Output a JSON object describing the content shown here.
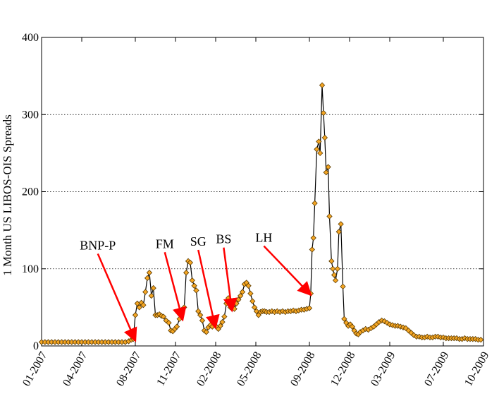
{
  "chart_data": {
    "type": "line",
    "title": "",
    "xlabel": "",
    "ylabel": "1 Month US LIBOS-OIS Spreads",
    "ylim": [
      0,
      400
    ],
    "yticks": [
      0,
      100,
      200,
      300,
      400
    ],
    "xticks": [
      {
        "label": "01-2007",
        "x": 0
      },
      {
        "label": "04-2007",
        "x": 3
      },
      {
        "label": "08-2007",
        "x": 7
      },
      {
        "label": "11-2007",
        "x": 10
      },
      {
        "label": "02-2008",
        "x": 13
      },
      {
        "label": "05-2008",
        "x": 16
      },
      {
        "label": "09-2008",
        "x": 20
      },
      {
        "label": "12-2008",
        "x": 23
      },
      {
        "label": "03-2009",
        "x": 26
      },
      {
        "label": "07-2009",
        "x": 30
      },
      {
        "label": "10-2009",
        "x": 33
      }
    ],
    "xlim": [
      0,
      33
    ],
    "grid": "horizontal-dotted",
    "colors": {
      "line": "#000000",
      "marker_fill": "#f5a623",
      "marker_stroke": "#5a3a00",
      "arrow": "#ff0000"
    },
    "series": [
      {
        "points": [
          [
            0.0,
            5
          ],
          [
            0.25,
            5
          ],
          [
            0.5,
            5
          ],
          [
            0.75,
            5
          ],
          [
            1.0,
            5
          ],
          [
            1.25,
            5
          ],
          [
            1.5,
            5
          ],
          [
            1.75,
            5
          ],
          [
            2.0,
            5
          ],
          [
            2.25,
            5
          ],
          [
            2.5,
            5
          ],
          [
            2.75,
            5
          ],
          [
            3.0,
            5
          ],
          [
            3.25,
            5
          ],
          [
            3.5,
            5
          ],
          [
            3.75,
            5
          ],
          [
            4.0,
            5
          ],
          [
            4.25,
            5
          ],
          [
            4.5,
            5
          ],
          [
            4.75,
            5
          ],
          [
            5.0,
            5
          ],
          [
            5.25,
            5
          ],
          [
            5.5,
            5
          ],
          [
            5.75,
            5
          ],
          [
            6.0,
            5
          ],
          [
            6.25,
            5
          ],
          [
            6.5,
            6
          ],
          [
            6.7,
            8
          ],
          [
            6.85,
            9
          ],
          [
            7.0,
            40
          ],
          [
            7.15,
            55
          ],
          [
            7.3,
            50
          ],
          [
            7.45,
            56
          ],
          [
            7.6,
            53
          ],
          [
            7.75,
            70
          ],
          [
            7.9,
            88
          ],
          [
            8.05,
            95
          ],
          [
            8.2,
            65
          ],
          [
            8.35,
            75
          ],
          [
            8.5,
            40
          ],
          [
            8.65,
            40
          ],
          [
            8.8,
            41
          ],
          [
            8.95,
            39
          ],
          [
            9.1,
            38
          ],
          [
            9.3,
            33
          ],
          [
            9.5,
            30
          ],
          [
            9.65,
            20
          ],
          [
            9.8,
            19
          ],
          [
            9.95,
            22
          ],
          [
            10.1,
            25
          ],
          [
            10.3,
            35
          ],
          [
            10.5,
            45
          ],
          [
            10.65,
            50
          ],
          [
            10.8,
            95
          ],
          [
            10.95,
            110
          ],
          [
            11.1,
            108
          ],
          [
            11.25,
            85
          ],
          [
            11.4,
            78
          ],
          [
            11.55,
            72
          ],
          [
            11.7,
            45
          ],
          [
            11.85,
            40
          ],
          [
            12.0,
            33
          ],
          [
            12.15,
            20
          ],
          [
            12.3,
            18
          ],
          [
            12.45,
            24
          ],
          [
            12.6,
            27
          ],
          [
            12.75,
            25
          ],
          [
            12.9,
            28
          ],
          [
            13.05,
            25
          ],
          [
            13.2,
            22
          ],
          [
            13.35,
            26
          ],
          [
            13.5,
            31
          ],
          [
            13.65,
            38
          ],
          [
            13.8,
            55
          ],
          [
            13.95,
            62
          ],
          [
            14.1,
            50
          ],
          [
            14.25,
            52
          ],
          [
            14.4,
            48
          ],
          [
            14.55,
            55
          ],
          [
            14.7,
            60
          ],
          [
            14.85,
            65
          ],
          [
            15.0,
            70
          ],
          [
            15.15,
            80
          ],
          [
            15.3,
            82
          ],
          [
            15.45,
            78
          ],
          [
            15.6,
            68
          ],
          [
            15.75,
            58
          ],
          [
            15.9,
            50
          ],
          [
            16.05,
            45
          ],
          [
            16.2,
            40
          ],
          [
            16.35,
            44
          ],
          [
            16.5,
            45
          ],
          [
            16.65,
            45
          ],
          [
            16.8,
            44
          ],
          [
            17.0,
            44
          ],
          [
            17.2,
            45
          ],
          [
            17.4,
            44
          ],
          [
            17.6,
            45
          ],
          [
            17.8,
            44
          ],
          [
            18.0,
            45
          ],
          [
            18.2,
            44
          ],
          [
            18.4,
            45
          ],
          [
            18.6,
            45
          ],
          [
            18.8,
            46
          ],
          [
            19.0,
            45
          ],
          [
            19.2,
            46
          ],
          [
            19.4,
            47
          ],
          [
            19.6,
            47
          ],
          [
            19.8,
            48
          ],
          [
            20.0,
            49
          ],
          [
            20.1,
            68
          ],
          [
            20.2,
            125
          ],
          [
            20.3,
            140
          ],
          [
            20.4,
            185
          ],
          [
            20.55,
            255
          ],
          [
            20.7,
            265
          ],
          [
            20.8,
            250
          ],
          [
            20.95,
            338
          ],
          [
            21.05,
            302
          ],
          [
            21.15,
            270
          ],
          [
            21.25,
            225
          ],
          [
            21.4,
            232
          ],
          [
            21.5,
            168
          ],
          [
            21.65,
            110
          ],
          [
            21.75,
            100
          ],
          [
            21.85,
            92
          ],
          [
            21.95,
            85
          ],
          [
            22.1,
            100
          ],
          [
            22.2,
            148
          ],
          [
            22.35,
            158
          ],
          [
            22.5,
            77
          ],
          [
            22.6,
            35
          ],
          [
            22.75,
            30
          ],
          [
            22.9,
            26
          ],
          [
            23.05,
            28
          ],
          [
            23.2,
            25
          ],
          [
            23.35,
            20
          ],
          [
            23.5,
            16
          ],
          [
            23.65,
            15
          ],
          [
            23.8,
            18
          ],
          [
            24.0,
            20
          ],
          [
            24.2,
            22
          ],
          [
            24.4,
            21
          ],
          [
            24.6,
            23
          ],
          [
            24.8,
            25
          ],
          [
            25.0,
            28
          ],
          [
            25.2,
            31
          ],
          [
            25.4,
            33
          ],
          [
            25.6,
            32
          ],
          [
            25.8,
            30
          ],
          [
            26.0,
            28
          ],
          [
            26.2,
            27
          ],
          [
            26.4,
            26
          ],
          [
            26.6,
            26
          ],
          [
            26.8,
            25
          ],
          [
            27.0,
            24
          ],
          [
            27.2,
            23
          ],
          [
            27.4,
            20
          ],
          [
            27.6,
            17
          ],
          [
            27.8,
            14
          ],
          [
            28.0,
            12
          ],
          [
            28.2,
            12
          ],
          [
            28.4,
            11
          ],
          [
            28.6,
            11
          ],
          [
            28.8,
            12
          ],
          [
            29.0,
            11
          ],
          [
            29.2,
            11
          ],
          [
            29.4,
            12
          ],
          [
            29.6,
            12
          ],
          [
            29.8,
            11
          ],
          [
            30.0,
            11
          ],
          [
            30.2,
            10
          ],
          [
            30.4,
            10
          ],
          [
            30.6,
            10
          ],
          [
            30.8,
            10
          ],
          [
            31.0,
            10
          ],
          [
            31.2,
            9
          ],
          [
            31.4,
            9
          ],
          [
            31.6,
            10
          ],
          [
            31.8,
            9
          ],
          [
            32.0,
            9
          ],
          [
            32.2,
            9
          ],
          [
            32.4,
            9
          ],
          [
            32.6,
            8
          ],
          [
            32.8,
            8
          ]
        ]
      }
    ],
    "annotations": [
      {
        "label": "BNP-P",
        "text_x": 4.2,
        "text_y": 125,
        "tip_x": 6.95,
        "tip_y": 9
      },
      {
        "label": "FM",
        "text_x": 9.2,
        "text_y": 127,
        "tip_x": 10.5,
        "tip_y": 36
      },
      {
        "label": "SG",
        "text_x": 11.7,
        "text_y": 130,
        "tip_x": 12.95,
        "tip_y": 26
      },
      {
        "label": "BS",
        "text_x": 13.6,
        "text_y": 133,
        "tip_x": 14.2,
        "tip_y": 48
      },
      {
        "label": "LH",
        "text_x": 16.6,
        "text_y": 135,
        "tip_x": 20.0,
        "tip_y": 68
      }
    ]
  }
}
